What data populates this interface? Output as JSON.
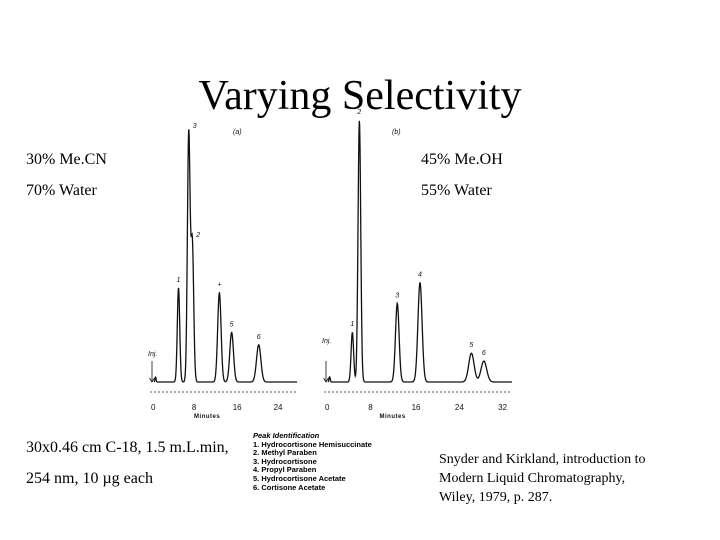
{
  "title": "Varying Selectivity",
  "conditions": {
    "left_line1": "30% Me.CN",
    "left_line2": "70% Water",
    "right_line1": "45% Me.OH",
    "right_line2": "55% Water"
  },
  "footer": {
    "line1": "30x0.46 cm C-18, 1.5 m.L.min,",
    "line2": "254 nm, 10 µg each"
  },
  "citation": {
    "line1": "Snyder and Kirkland, introduction to",
    "line2": "Modern Liquid Chromatography,",
    "line3": "Wiley, 1979, p. 287."
  },
  "peak_identification": {
    "heading": "Peak Identification",
    "items": [
      "1. Hydrocortisone Hemisuccinate",
      "2. Methyl Paraben",
      "3. Hydrocortisone",
      "4. Propyl Paraben",
      "5. Hydrocortisone Acetate",
      "6. Cortisone Acetate"
    ]
  },
  "chart_data": [
    {
      "type": "line",
      "panel_label": "(a)",
      "xlabel": "Minutes",
      "x_ticks": [
        "0",
        "8",
        "16",
        "24"
      ],
      "x_range": [
        0,
        28
      ],
      "injection_label": "Inj.",
      "peaks": [
        {
          "label": "1",
          "time": 4.8,
          "height": 0.38
        },
        {
          "label": "2",
          "time": 7.5,
          "height": 0.56
        },
        {
          "label": "3",
          "time": 6.8,
          "height": 1.0
        },
        {
          "label": "+",
          "time": 12.8,
          "height": 0.36
        },
        {
          "label": "5",
          "time": 15.2,
          "height": 0.2
        },
        {
          "label": "6",
          "time": 20.5,
          "height": 0.15
        }
      ]
    },
    {
      "type": "line",
      "panel_label": "(b)",
      "xlabel": "Minutes",
      "x_ticks": [
        "0",
        "8",
        "16",
        "24",
        "32"
      ],
      "x_range": [
        0,
        34
      ],
      "injection_label": "Inj.",
      "peaks": [
        {
          "label": "1",
          "time": 4.5,
          "height": 0.19
        },
        {
          "label": "2",
          "time": 5.8,
          "height": 1.0
        },
        {
          "label": "3",
          "time": 12.8,
          "height": 0.3
        },
        {
          "label": "4",
          "time": 17.0,
          "height": 0.38
        },
        {
          "label": "5",
          "time": 26.5,
          "height": 0.11
        },
        {
          "label": "6",
          "time": 28.8,
          "height": 0.08
        }
      ]
    }
  ]
}
